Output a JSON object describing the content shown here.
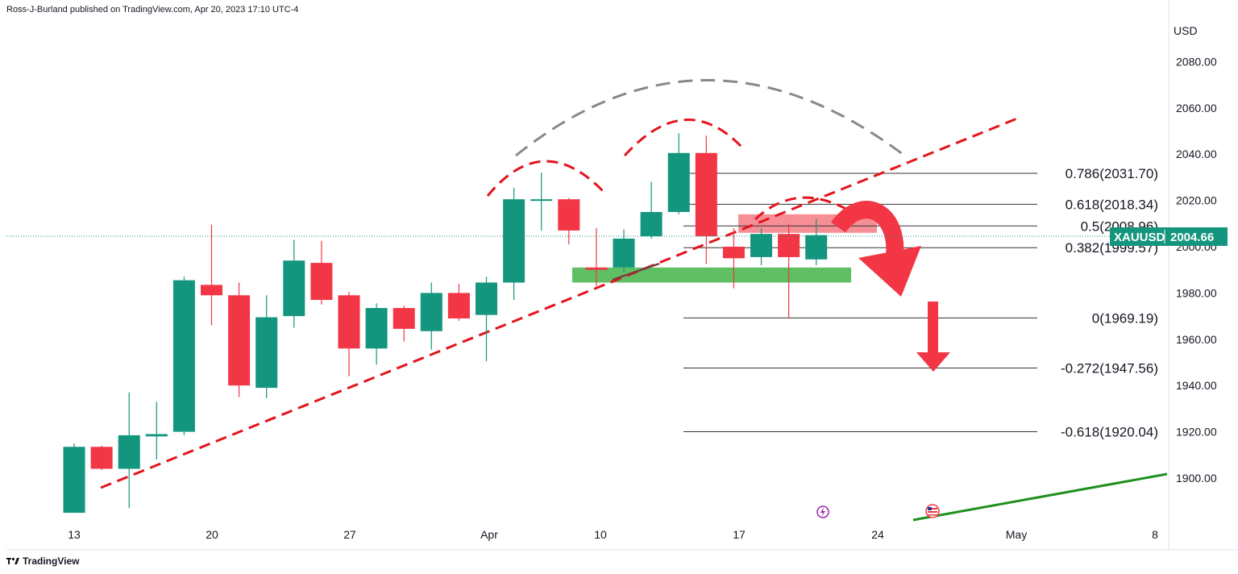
{
  "header": {
    "published": "Ross-J-Burland published on TradingView.com, Apr 20, 2023 17:10 UTC-4"
  },
  "footer": {
    "brand": "TradingView",
    "logo": "tradingview-logo-icon"
  },
  "colors": {
    "up": "#14957e",
    "down": "#f23645",
    "support_zone": "#5fbf62",
    "resistance_zone": "#f47a82",
    "trendline": "#e3141d",
    "arc_grey": "#888888",
    "green_line": "#1f8f1f"
  },
  "chart_data": {
    "type": "candlestick",
    "symbol": "XAUUSD",
    "last_price": "2004.66",
    "y_unit": "USD",
    "ylim": [
      1885,
      2098
    ],
    "y_ticks": [
      "2080.00",
      "2060.00",
      "2040.00",
      "2020.00",
      "2000.00",
      "1980.00",
      "1960.00",
      "1940.00",
      "1920.00",
      "1900.00"
    ],
    "x_ticks": [
      "13",
      "20",
      "27",
      "Apr",
      "10",
      "17",
      "24",
      "May",
      "8"
    ],
    "candles": [
      {
        "o": 1885.0,
        "h": 1915.0,
        "l": 1885.0,
        "c": 1913.5
      },
      {
        "o": 1913.5,
        "h": 1914.0,
        "l": 1903.5,
        "c": 1904.0
      },
      {
        "o": 1904.0,
        "h": 1937.0,
        "l": 1887.0,
        "c": 1918.5
      },
      {
        "o": 1918.0,
        "h": 1933.0,
        "l": 1908.0,
        "c": 1919.0
      },
      {
        "o": 1920.0,
        "h": 1987.0,
        "l": 1918.5,
        "c": 1985.5
      },
      {
        "o": 1983.5,
        "h": 2009.5,
        "l": 1966.0,
        "c": 1979.0
      },
      {
        "o": 1979.0,
        "h": 1984.5,
        "l": 1935.0,
        "c": 1940.0
      },
      {
        "o": 1939.0,
        "h": 1979.0,
        "l": 1934.5,
        "c": 1969.5
      },
      {
        "o": 1970.0,
        "h": 2003.0,
        "l": 1965.0,
        "c": 1994.0
      },
      {
        "o": 1993.0,
        "h": 2002.5,
        "l": 1975.0,
        "c": 1977.0
      },
      {
        "o": 1979.0,
        "h": 1980.5,
        "l": 1944.0,
        "c": 1956.0
      },
      {
        "o": 1956.0,
        "h": 1975.5,
        "l": 1949.0,
        "c": 1973.5
      },
      {
        "o": 1973.5,
        "h": 1974.5,
        "l": 1959.0,
        "c": 1964.5
      },
      {
        "o": 1963.5,
        "h": 1984.5,
        "l": 1955.5,
        "c": 1980.0
      },
      {
        "o": 1980.0,
        "h": 1984.0,
        "l": 1968.0,
        "c": 1969.0
      },
      {
        "o": 1970.5,
        "h": 1987.0,
        "l": 1950.5,
        "c": 1984.5
      },
      {
        "o": 1984.5,
        "h": 2025.5,
        "l": 1977.0,
        "c": 2020.5
      },
      {
        "o": 2020.0,
        "h": 2032.0,
        "l": 2007.0,
        "c": 2020.5
      },
      {
        "o": 2020.5,
        "h": 2021.0,
        "l": 2001.0,
        "c": 2007.0
      },
      {
        "o": 1991.0,
        "h": 2008.0,
        "l": 1983.0,
        "c": 1990.0
      },
      {
        "o": 1991.0,
        "h": 2007.5,
        "l": 1989.0,
        "c": 2003.5
      },
      {
        "o": 2004.5,
        "h": 2028.0,
        "l": 2003.5,
        "c": 2015.0
      },
      {
        "o": 2015.0,
        "h": 2049.0,
        "l": 2014.0,
        "c": 2040.5
      },
      {
        "o": 2040.5,
        "h": 2048.0,
        "l": 1992.5,
        "c": 2004.5
      },
      {
        "o": 2000.0,
        "h": 2008.0,
        "l": 1982.0,
        "c": 1995.0
      },
      {
        "o": 1995.5,
        "h": 2008.0,
        "l": 1992.0,
        "c": 2005.5
      },
      {
        "o": 2005.5,
        "h": 2010.0,
        "l": 1969.0,
        "c": 1995.5
      },
      {
        "o": 1994.5,
        "h": 2012.0,
        "l": 1992.0,
        "c": 2005.0
      }
    ],
    "fib_levels": [
      {
        "label": "0.786(2031.70)",
        "value": 2031.7
      },
      {
        "label": "0.618(2018.34)",
        "value": 2018.34
      },
      {
        "label": "0.5(2008.96)",
        "value": 2008.96
      },
      {
        "label": "0.382(1999.57)",
        "value": 1999.57
      },
      {
        "label": "0(1969.19)",
        "value": 1969.19
      },
      {
        "label": "-0.272(1947.56)",
        "value": 1947.56
      },
      {
        "label": "-0.618(1920.04)",
        "value": 1920.04
      }
    ]
  }
}
